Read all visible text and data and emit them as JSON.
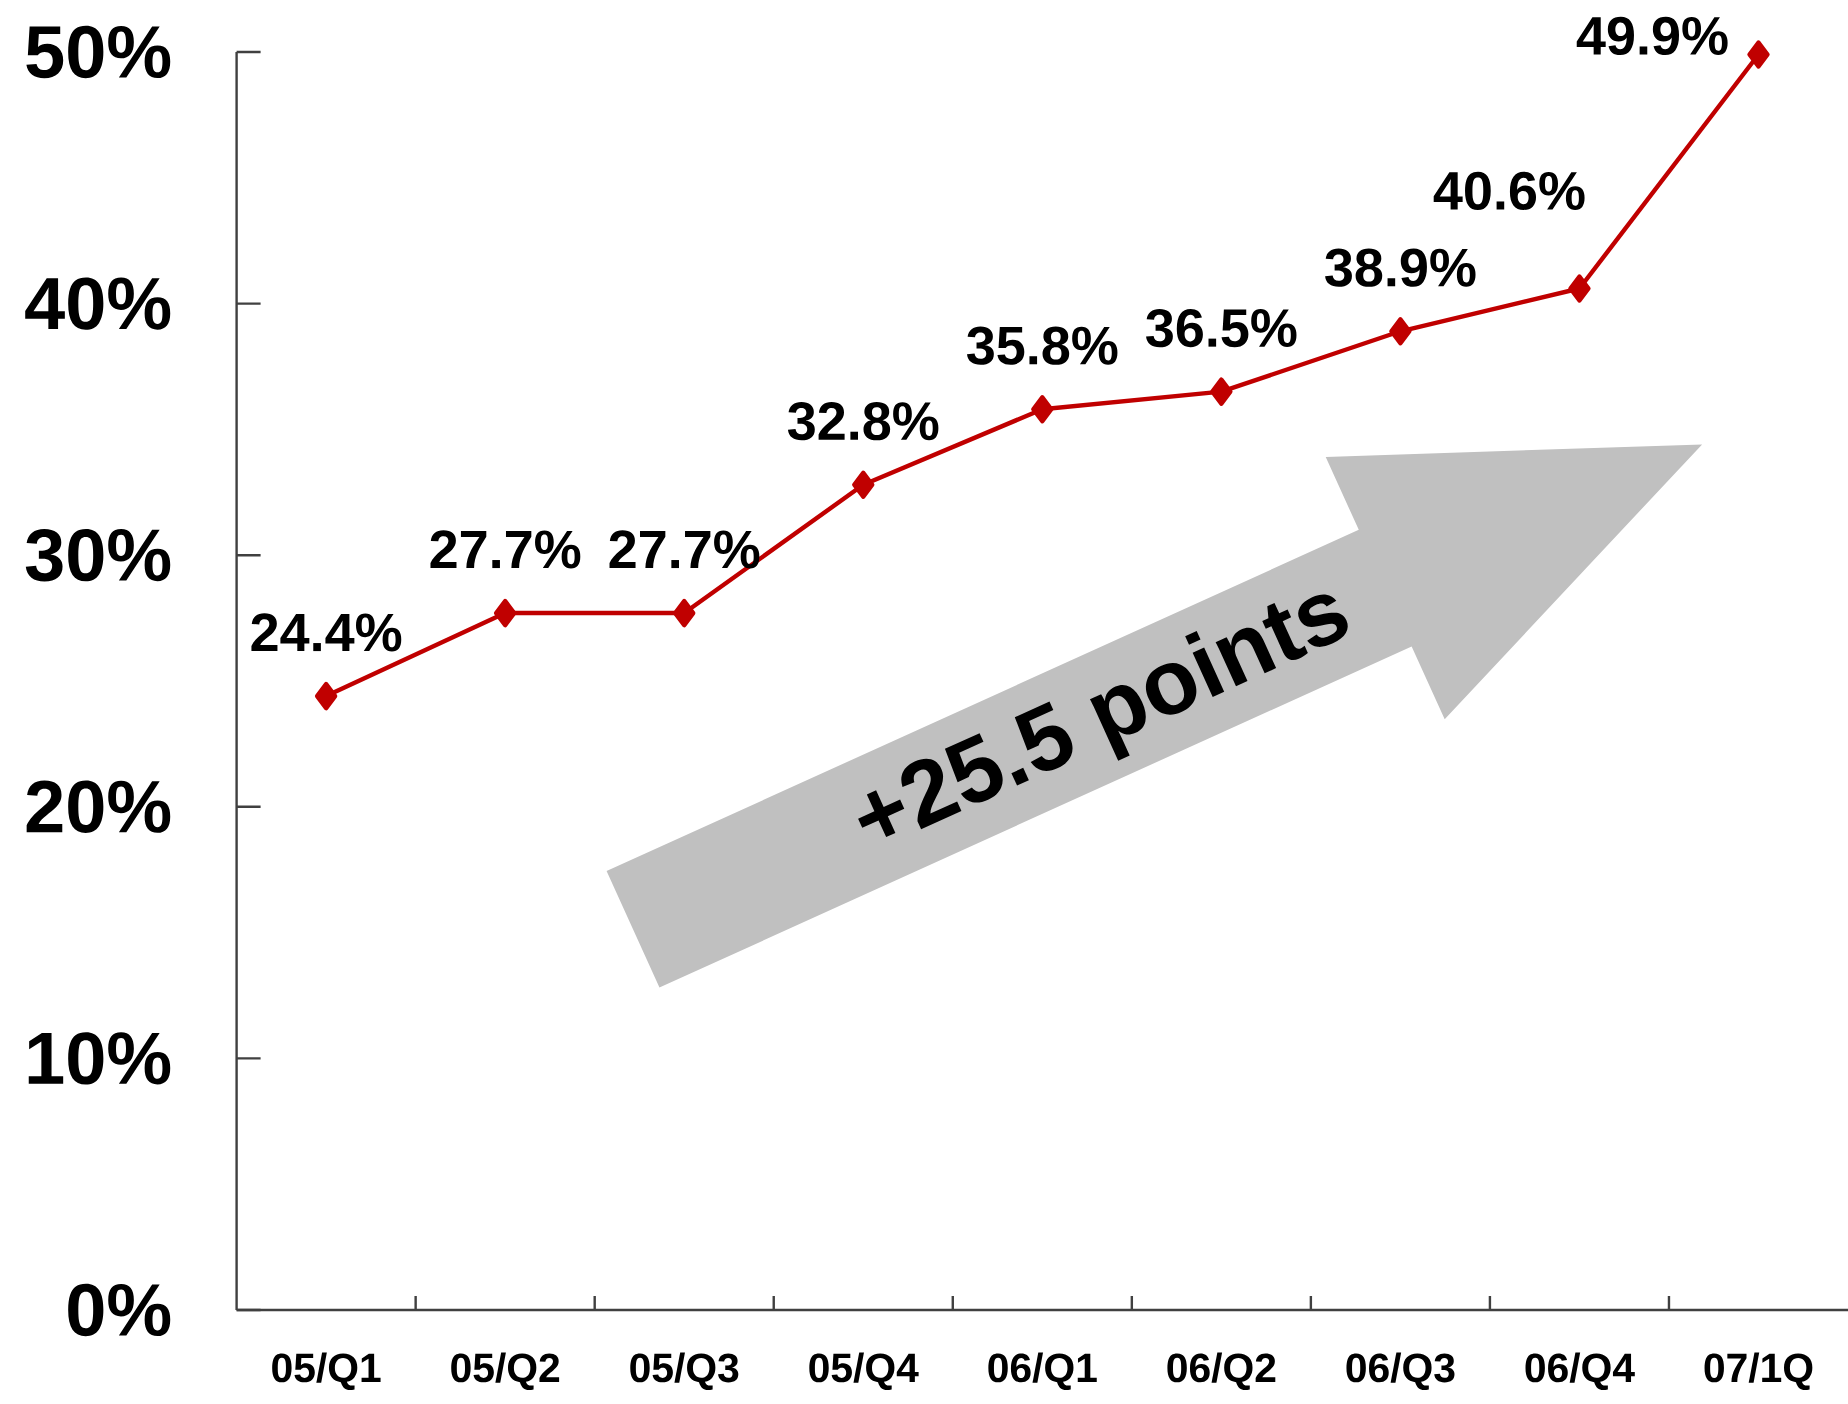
{
  "chart_data": {
    "type": "line",
    "categories": [
      "05/Q1",
      "05/Q2",
      "05/Q3",
      "05/Q4",
      "06/Q1",
      "06/Q2",
      "06/Q3",
      "06/Q4",
      "07/1Q"
    ],
    "values": [
      24.4,
      27.7,
      27.7,
      32.8,
      35.8,
      36.5,
      38.9,
      40.6,
      49.9
    ],
    "value_labels": [
      "24.4%",
      "27.7%",
      "27.7%",
      "32.8%",
      "35.8%",
      "36.5%",
      "38.9%",
      "40.6%",
      "49.9%"
    ],
    "color": "#c00000",
    "marker": "diamond",
    "line_style": "solid",
    "ylim": [
      0,
      50
    ],
    "yticks": [
      {
        "value": 0,
        "label": "0%"
      },
      {
        "value": 10,
        "label": "10%"
      },
      {
        "value": 20,
        "label": "20%"
      },
      {
        "value": 30,
        "label": "30%"
      },
      {
        "value": 40,
        "label": "40%"
      },
      {
        "value": 50,
        "label": "50%"
      }
    ],
    "annotations": [
      "+25.5 points"
    ]
  }
}
